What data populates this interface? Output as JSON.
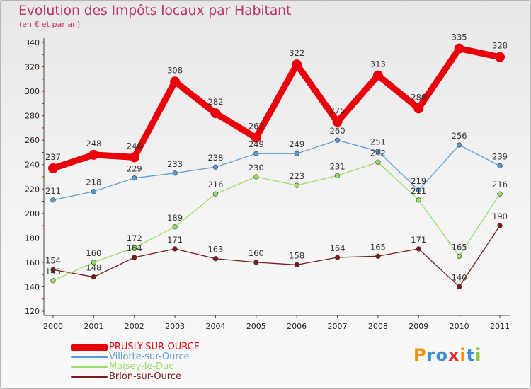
{
  "title": "Evolution des Impôts locaux par Habitant",
  "subtitle": "(en € et par an)",
  "logo": {
    "letters": [
      "P",
      "r",
      "o",
      "x",
      "i",
      "t",
      "i"
    ],
    "colors": [
      "#f39200",
      "#3a8fd4",
      "#3a8fd4",
      "#e8303a",
      "#f39200",
      "#3a8fd4",
      "#8cc63f"
    ]
  },
  "chart_data": {
    "type": "line",
    "x": [
      "2000",
      "2001",
      "2002",
      "2003",
      "2004",
      "2005",
      "2006",
      "2007",
      "2008",
      "2009",
      "2010",
      "2011"
    ],
    "ylim": [
      120,
      340
    ],
    "yticks": [
      120,
      140,
      160,
      180,
      200,
      220,
      240,
      260,
      280,
      300,
      320,
      340
    ],
    "grid": false,
    "legend": "bottom-left",
    "series": [
      {
        "name": "PRUSLY-SUR-OURCE",
        "color": "#e8000b",
        "emphasis": true,
        "values": [
          237,
          248,
          246,
          308,
          282,
          262,
          322,
          275,
          313,
          286,
          335,
          328
        ]
      },
      {
        "name": "Villotte-sur-Ource",
        "color": "#5b9bd5",
        "emphasis": false,
        "values": [
          211,
          218,
          229,
          233,
          238,
          249,
          249,
          260,
          251,
          219,
          256,
          239
        ]
      },
      {
        "name": "Maisey-le-Duc",
        "color": "#99dd66",
        "emphasis": false,
        "values": [
          145,
          160,
          172,
          189,
          216,
          230,
          223,
          231,
          242,
          211,
          165,
          216
        ]
      },
      {
        "name": "Brion-sur-Ource",
        "color": "#7a1a1a",
        "emphasis": false,
        "values": [
          154,
          148,
          164,
          171,
          163,
          160,
          158,
          164,
          165,
          171,
          140,
          190
        ]
      }
    ]
  }
}
